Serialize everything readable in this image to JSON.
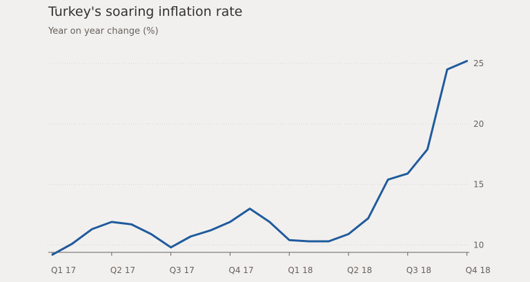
{
  "header": {
    "title": "Turkey's soaring inflation rate",
    "subtitle": "Year on year change (%)"
  },
  "chart_data": {
    "type": "line",
    "title": "Turkey's soaring inflation rate",
    "subtitle": "Year on year change (%)",
    "xlabel": "",
    "ylabel": "",
    "x_tick_labels": [
      "Q1 17",
      "Q2 17",
      "Q3 17",
      "Q4 17",
      "Q1 18",
      "Q2 18",
      "Q3 18",
      "Q4 18"
    ],
    "y_ticks": [
      10,
      15,
      20,
      25
    ],
    "ylim": [
      9,
      26
    ],
    "grid": "horizontal dotted",
    "y_axis_position": "right",
    "series": [
      {
        "color": "#1f5a9d",
        "values": [
          9.2,
          10.1,
          11.3,
          11.9,
          11.7,
          10.9,
          9.8,
          10.7,
          11.2,
          11.9,
          13.0,
          11.9,
          10.4,
          10.3,
          10.3,
          10.9,
          12.2,
          15.4,
          15.9,
          17.9,
          24.5,
          25.2
        ]
      }
    ],
    "colors": {
      "line": "#1f5a9d",
      "grid": "#d9d5d1",
      "axis": "#66605c",
      "background": "#f2f0ef"
    }
  }
}
